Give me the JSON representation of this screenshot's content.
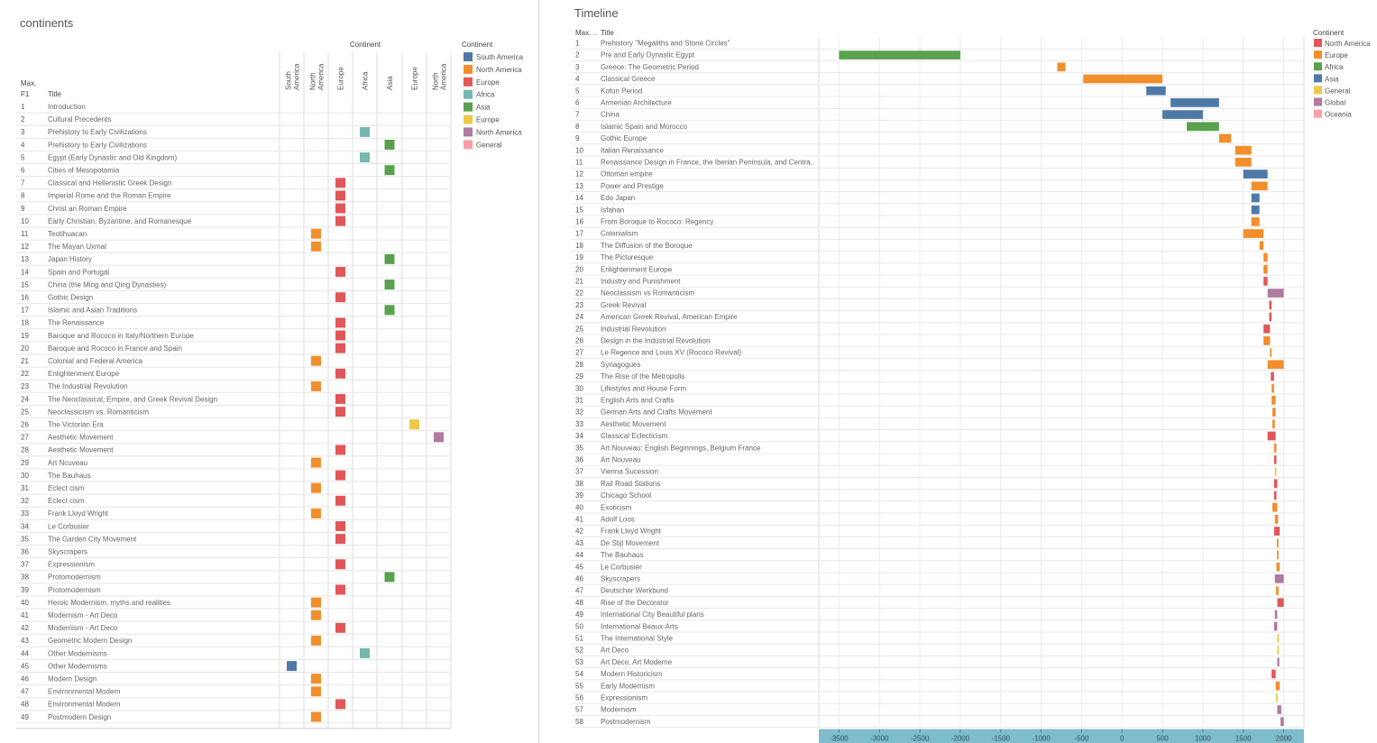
{
  "left": {
    "title": "continents",
    "header_group": "Continent",
    "col_max_label": "Max.",
    "col_f1_label": "F1",
    "col_title_label": "Title",
    "columns": [
      "South America",
      "North America",
      "Europe",
      "Africa",
      "Asia",
      "Europe",
      "North America"
    ],
    "legend_title": "Continent",
    "legend": [
      {
        "label": "South America",
        "color": "#4e79a7"
      },
      {
        "label": "North America",
        "color": "#f28e2b"
      },
      {
        "label": "Europe",
        "color": "#e15759"
      },
      {
        "label": "Africa",
        "color": "#76b7b2"
      },
      {
        "label": "Asia",
        "color": "#59a14f"
      },
      {
        "label": "Europe",
        "color": "#edc948"
      },
      {
        "label": "North America",
        "color": "#b07aa1"
      },
      {
        "label": "General",
        "color": "#ff9da7"
      }
    ]
  },
  "right": {
    "title": "Timeline",
    "col_max_label": "Max. ..",
    "col_title_label": "Title",
    "legend_title": "Continent",
    "legend": [
      {
        "label": "North America",
        "color": "#e15759"
      },
      {
        "label": "Europe",
        "color": "#f28e2b"
      },
      {
        "label": "Africa",
        "color": "#59a14f"
      },
      {
        "label": "Asia",
        "color": "#4e79a7"
      },
      {
        "label": "General",
        "color": "#edc948"
      },
      {
        "label": "Global",
        "color": "#b07aa1"
      },
      {
        "label": "Oceania",
        "color": "#ff9da7"
      }
    ]
  },
  "chart_data": [
    {
      "type": "table",
      "title": "continents",
      "rows": [
        {
          "id": "1",
          "title": "Introduction",
          "col": null
        },
        {
          "id": "2",
          "title": "Cultural Precedents",
          "col": null
        },
        {
          "id": "3",
          "title": "Prehistory to Early Civilizations",
          "col": 3
        },
        {
          "id": "4",
          "title": "Prehistory to Early Civilizations",
          "col": 4
        },
        {
          "id": "5",
          "title": "Egypt (Early Dynastic and Old Kingdom)",
          "col": 3
        },
        {
          "id": "6",
          "title": "Cities of Mesopotamia",
          "col": 4
        },
        {
          "id": "7",
          "title": "Classical and Hellenistic Greek Design",
          "col": 2
        },
        {
          "id": "8",
          "title": "Imperial Rome and the Roman Empire",
          "col": 2
        },
        {
          "id": "9",
          "title": "Christ an Roman Empire",
          "col": 2
        },
        {
          "id": "10",
          "title": "Early Christian, Byzantine, and Romanesque",
          "col": 2
        },
        {
          "id": "11",
          "title": "Teotihuacan",
          "col": 1
        },
        {
          "id": "12",
          "title": "The Mayan Uxmal",
          "col": 1
        },
        {
          "id": "13",
          "title": "Japan History",
          "col": 4
        },
        {
          "id": "14",
          "title": "Spain and Portugal",
          "col": 2
        },
        {
          "id": "15",
          "title": "China (the Ming and Qing Dynasties)",
          "col": 4
        },
        {
          "id": "16",
          "title": "Gothic Design",
          "col": 2
        },
        {
          "id": "17",
          "title": "Islamic and Asian Traditions",
          "col": 4
        },
        {
          "id": "18",
          "title": "The Renaissance",
          "col": 2
        },
        {
          "id": "19",
          "title": "Baroque and Rococo in Italy/Northern Europe",
          "col": 2
        },
        {
          "id": "20",
          "title": "Baroque and Rococo in France and Spain",
          "col": 2
        },
        {
          "id": "21",
          "title": "Colonial and Federal America",
          "col": 1
        },
        {
          "id": "22",
          "title": "Enlightenment Europe",
          "col": 2
        },
        {
          "id": "23",
          "title": "The Industrial Revolution",
          "col": 1
        },
        {
          "id": "24",
          "title": "The Neoclassical, Empire, and Greek Revival Design",
          "col": 2
        },
        {
          "id": "25",
          "title": "Neoclassicism vs. Romanticism",
          "col": 2
        },
        {
          "id": "26",
          "title": "The Victorian Era",
          "col": 5
        },
        {
          "id": "27",
          "title": "Aesthetic Movement",
          "col": 6
        },
        {
          "id": "28",
          "title": "Aesthetic Movement",
          "col": 2
        },
        {
          "id": "29",
          "title": "Art Ncuveau",
          "col": 1
        },
        {
          "id": "30",
          "title": "The Bauhaus",
          "col": 2
        },
        {
          "id": "31",
          "title": "Eclect cism",
          "col": 1
        },
        {
          "id": "32",
          "title": "Eclect cism",
          "col": 2
        },
        {
          "id": "33",
          "title": "Frank Lloyd Wright",
          "col": 1
        },
        {
          "id": "34",
          "title": "Le Corbusier",
          "col": 2
        },
        {
          "id": "35",
          "title": "The Garden City Movement",
          "col": 2
        },
        {
          "id": "36",
          "title": "Skyscrapers",
          "col": null
        },
        {
          "id": "37",
          "title": "Expressionism",
          "col": 2
        },
        {
          "id": "38",
          "title": "Protomodernism",
          "col": 4
        },
        {
          "id": "39",
          "title": "Protomodernism",
          "col": 2
        },
        {
          "id": "40",
          "title": "Heroic Modernism, myths and realities",
          "col": 1
        },
        {
          "id": "41",
          "title": "Modernism - Art Deco",
          "col": 1
        },
        {
          "id": "42",
          "title": "Modernism - Art Deco",
          "col": 2
        },
        {
          "id": "43",
          "title": "Geometric Modern Design",
          "col": 1
        },
        {
          "id": "44",
          "title": "Other Modernisms",
          "col": 3
        },
        {
          "id": "45",
          "title": "Other Modernisms",
          "col": 0
        },
        {
          "id": "46",
          "title": "Modern Design",
          "col": 1
        },
        {
          "id": "47",
          "title": "Environmental Modern",
          "col": 1
        },
        {
          "id": "48",
          "title": "Environmental Modern",
          "col": 2
        },
        {
          "id": "49",
          "title": "Postmodern Design",
          "col": 1
        }
      ]
    },
    {
      "type": "bar",
      "title": "Timeline",
      "xlim": [
        -3750,
        2250
      ],
      "xticks": [
        -3500,
        -3000,
        -2500,
        -2000,
        -1500,
        -1000,
        -500,
        0,
        500,
        1000,
        1500,
        2000
      ],
      "grid": true,
      "legend_position": "right",
      "rows": [
        {
          "id": "1",
          "title": "Prehistory \"Megaliths and Stone Circles\"",
          "start": null,
          "end": null,
          "continent": "Europe"
        },
        {
          "id": "2",
          "title": "Pre and Early Dynastic Egypt",
          "start": -3500,
          "end": -2000,
          "continent": "Africa"
        },
        {
          "id": "3",
          "title": "Greece: The Geometric Period",
          "start": -800,
          "end": -700,
          "continent": "Europe"
        },
        {
          "id": "4",
          "title": "Classical Greece",
          "start": -480,
          "end": 500,
          "continent": "Europe"
        },
        {
          "id": "5",
          "title": "Kofun Period",
          "start": 300,
          "end": 540,
          "continent": "Asia"
        },
        {
          "id": "6",
          "title": "Armenian Architecture",
          "start": 600,
          "end": 1200,
          "continent": "Asia"
        },
        {
          "id": "7",
          "title": "China",
          "start": 500,
          "end": 1000,
          "continent": "Asia"
        },
        {
          "id": "8",
          "title": "Islamic Spain and Morocco",
          "start": 800,
          "end": 1200,
          "continent": "Africa"
        },
        {
          "id": "9",
          "title": "Gothic Europe",
          "start": 1200,
          "end": 1350,
          "continent": "Europe"
        },
        {
          "id": "10",
          "title": "Italian Renaissance",
          "start": 1400,
          "end": 1600,
          "continent": "Europe"
        },
        {
          "id": "11",
          "title": "Renaissance Design in France, the Iberian Peninsula, and Centra..",
          "start": 1400,
          "end": 1600,
          "continent": "Europe"
        },
        {
          "id": "12",
          "title": "Ottoman empire",
          "start": 1500,
          "end": 1800,
          "continent": "Asia"
        },
        {
          "id": "13",
          "title": "Power and Prestige",
          "start": 1600,
          "end": 1800,
          "continent": "Europe"
        },
        {
          "id": "14",
          "title": "Edo Japan",
          "start": 1600,
          "end": 1700,
          "continent": "Asia"
        },
        {
          "id": "15",
          "title": "Isfahan",
          "start": 1600,
          "end": 1700,
          "continent": "Asia"
        },
        {
          "id": "16",
          "title": "From Boroque to Rococo: Regency",
          "start": 1600,
          "end": 1700,
          "continent": "Europe"
        },
        {
          "id": "17",
          "title": "Colonialism",
          "start": 1500,
          "end": 1750,
          "continent": "Europe"
        },
        {
          "id": "18",
          "title": "The Diffusion of the Boroque",
          "start": 1700,
          "end": 1750,
          "continent": "Europe"
        },
        {
          "id": "19",
          "title": "The Picturesque",
          "start": 1750,
          "end": 1800,
          "continent": "Europe"
        },
        {
          "id": "20",
          "title": "Enlightenment Europe",
          "start": 1750,
          "end": 1800,
          "continent": "Europe"
        },
        {
          "id": "21",
          "title": "Industry and Punishment",
          "start": 1750,
          "end": 1800,
          "continent": "North America"
        },
        {
          "id": "22",
          "title": "Neoclassism vs Romanticism",
          "start": 1800,
          "end": 2000,
          "continent": "Global"
        },
        {
          "id": "23",
          "title": "Greek Revival",
          "start": 1820,
          "end": 1850,
          "continent": "North America"
        },
        {
          "id": "24",
          "title": "American Greek Revival, American Empire",
          "start": 1820,
          "end": 1850,
          "continent": "North America"
        },
        {
          "id": "25",
          "title": "Industrial Revolution",
          "start": 1750,
          "end": 1830,
          "continent": "North America"
        },
        {
          "id": "26",
          "title": "Design in the Industrial Revolution",
          "start": 1750,
          "end": 1830,
          "continent": "Europe"
        },
        {
          "id": "27",
          "title": "Le Regence and Louis XV (Rococo Revival)",
          "start": 1830,
          "end": 1850,
          "continent": "Europe"
        },
        {
          "id": "28",
          "title": "Synagogues",
          "start": 1800,
          "end": 2000,
          "continent": "Europe"
        },
        {
          "id": "29",
          "title": "The Rise of the Metropolis",
          "start": 1840,
          "end": 1880,
          "continent": "North America"
        },
        {
          "id": "30",
          "title": "Lifestyles and House Form",
          "start": 1850,
          "end": 1880,
          "continent": "Europe"
        },
        {
          "id": "31",
          "title": "English Arts and Crafts",
          "start": 1850,
          "end": 1900,
          "continent": "Europe"
        },
        {
          "id": "32",
          "title": "German Arts and Crafts Movement",
          "start": 1860,
          "end": 1900,
          "continent": "Europe"
        },
        {
          "id": "33",
          "title": "Aesthetic Movement",
          "start": 1860,
          "end": 1890,
          "continent": "Europe"
        },
        {
          "id": "34",
          "title": "Classical Eclecticism",
          "start": 1800,
          "end": 1900,
          "continent": "North America"
        },
        {
          "id": "35",
          "title": "Art Nouveau: English Beginnings, Belgium France",
          "start": 1880,
          "end": 1910,
          "continent": "Europe"
        },
        {
          "id": "36",
          "title": "Art Nouveau",
          "start": 1880,
          "end": 1910,
          "continent": "North America"
        },
        {
          "id": "37",
          "title": "Vienna Sucession",
          "start": 1890,
          "end": 1910,
          "continent": "General"
        },
        {
          "id": "38",
          "title": "Rail Road Stations",
          "start": 1880,
          "end": 1920,
          "continent": "North America"
        },
        {
          "id": "39",
          "title": "Chicago School",
          "start": 1880,
          "end": 1910,
          "continent": "North America"
        },
        {
          "id": "40",
          "title": "Exoticism",
          "start": 1860,
          "end": 1920,
          "continent": "Europe"
        },
        {
          "id": "41",
          "title": "Adolf Loos",
          "start": 1890,
          "end": 1930,
          "continent": "Europe"
        },
        {
          "id": "42",
          "title": "Frank Lloyd Wright",
          "start": 1880,
          "end": 1950,
          "continent": "North America"
        },
        {
          "id": "43",
          "title": "De Stijl Movement",
          "start": 1915,
          "end": 1935,
          "continent": "Europe"
        },
        {
          "id": "44",
          "title": "The Bauhaus",
          "start": 1915,
          "end": 1935,
          "continent": "Europe"
        },
        {
          "id": "45",
          "title": "Le Corbusier",
          "start": 1910,
          "end": 1950,
          "continent": "Europe"
        },
        {
          "id": "46",
          "title": "Skyscrapers",
          "start": 1890,
          "end": 2000,
          "continent": "Global"
        },
        {
          "id": "47",
          "title": "Deutscher Werkbund",
          "start": 1905,
          "end": 1935,
          "continent": "Europe"
        },
        {
          "id": "48",
          "title": "Rise of the Decorator",
          "start": 1920,
          "end": 2000,
          "continent": "North America"
        },
        {
          "id": "49",
          "title": "International City Beautiful plans",
          "start": 1890,
          "end": 1920,
          "continent": "Global"
        },
        {
          "id": "50",
          "title": "International Beaux-Arts",
          "start": 1880,
          "end": 1920,
          "continent": "Global"
        },
        {
          "id": "51",
          "title": "The International Style",
          "start": 1920,
          "end": 1940,
          "continent": "General"
        },
        {
          "id": "52",
          "title": "Art Deco",
          "start": 1920,
          "end": 1940,
          "continent": "General"
        },
        {
          "id": "53",
          "title": "Art Deco, Art Moderne",
          "start": 1920,
          "end": 1945,
          "continent": "Global"
        },
        {
          "id": "54",
          "title": "Modern Historicism",
          "start": 1850,
          "end": 1900,
          "continent": "North America"
        },
        {
          "id": "55",
          "title": "Early Modernism",
          "start": 1900,
          "end": 1950,
          "continent": "Europe"
        },
        {
          "id": "56",
          "title": "Expressionism",
          "start": 1905,
          "end": 1925,
          "continent": "General"
        },
        {
          "id": "57",
          "title": "Modernism",
          "start": 1920,
          "end": 1970,
          "continent": "Global"
        },
        {
          "id": "58",
          "title": "Postmodernism",
          "start": 1960,
          "end": 2000,
          "continent": "Global"
        }
      ]
    }
  ]
}
